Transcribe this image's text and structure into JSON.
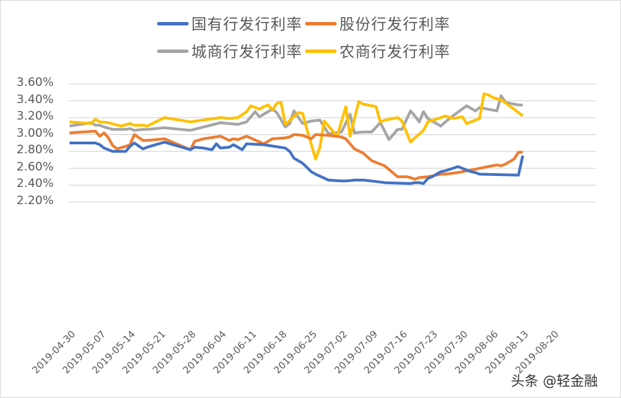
{
  "chart_data": {
    "type": "line",
    "title": "",
    "xlabel": "",
    "ylabel": "",
    "ylim": [
      2.2,
      3.6
    ],
    "y_ticks": [
      "3.60%",
      "3.40%",
      "3.20%",
      "3.00%",
      "2.80%",
      "2.60%",
      "2.40%",
      "2.20%"
    ],
    "x_ticks": [
      "2019-04-30",
      "2019-05-07",
      "2019-05-14",
      "2019-05-21",
      "2019-05-28",
      "2019-06-04",
      "2019-06-11",
      "2019-06-18",
      "2019-06-25",
      "2019-07-02",
      "2019-07-09",
      "2019-07-16",
      "2019-07-23",
      "2019-07-30",
      "2019-08-06",
      "2019-08-13",
      "2019-08-20"
    ],
    "grid": true,
    "legend_position": "top",
    "x_unit": "days since 2019-04-30",
    "series": [
      {
        "name": "国有行发行利率",
        "color": "#4472C4",
        "x": [
          0,
          6,
          7,
          8,
          10,
          12,
          13,
          14,
          15,
          17,
          18,
          22,
          28,
          29,
          31,
          33,
          34,
          35,
          37,
          38,
          39,
          40,
          41,
          45,
          50,
          51,
          52,
          54,
          55,
          56,
          57,
          60,
          63,
          64,
          66,
          68,
          70,
          73,
          79,
          80,
          81,
          82,
          83,
          84,
          86,
          87,
          90,
          92,
          93,
          94,
          95,
          104,
          105
        ],
        "values": [
          2.9,
          2.9,
          2.88,
          2.84,
          2.8,
          2.8,
          2.8,
          2.86,
          2.9,
          2.83,
          2.85,
          2.91,
          2.82,
          2.85,
          2.84,
          2.82,
          2.89,
          2.84,
          2.85,
          2.88,
          2.85,
          2.82,
          2.89,
          2.88,
          2.84,
          2.8,
          2.72,
          2.66,
          2.61,
          2.56,
          2.53,
          2.46,
          2.45,
          2.45,
          2.46,
          2.46,
          2.45,
          2.43,
          2.42,
          2.43,
          2.43,
          2.42,
          2.48,
          2.5,
          2.56,
          2.57,
          2.62,
          2.58,
          2.56,
          2.55,
          2.53,
          2.52,
          2.75
        ]
      },
      {
        "name": "股份行发行利率",
        "color": "#ED7D31",
        "x": [
          0,
          6,
          7,
          8,
          9,
          10,
          11,
          13,
          14,
          15,
          17,
          18,
          22,
          28,
          29,
          31,
          35,
          37,
          38,
          39,
          40,
          41,
          45,
          47,
          50,
          51,
          52,
          54,
          55,
          56,
          57,
          60,
          63,
          64,
          66,
          68,
          70,
          73,
          76,
          78,
          79,
          80,
          81,
          83,
          86,
          87,
          90,
          92,
          93,
          97,
          98,
          99,
          100,
          101,
          103,
          104,
          105
        ],
        "values": [
          3.02,
          3.04,
          2.98,
          3.02,
          2.96,
          2.87,
          2.83,
          2.86,
          2.88,
          3.0,
          2.93,
          2.93,
          2.95,
          2.82,
          2.92,
          2.95,
          2.98,
          2.93,
          2.95,
          2.94,
          2.96,
          2.98,
          2.89,
          2.95,
          2.96,
          2.97,
          3.0,
          2.99,
          2.97,
          2.95,
          3.0,
          2.99,
          2.97,
          2.95,
          2.83,
          2.78,
          2.69,
          2.63,
          2.5,
          2.5,
          2.49,
          2.47,
          2.49,
          2.5,
          2.53,
          2.53,
          2.55,
          2.57,
          2.58,
          2.62,
          2.63,
          2.64,
          2.63,
          2.65,
          2.71,
          2.79,
          2.79
        ]
      },
      {
        "name": "城商行发行利率",
        "color": "#A5A5A5",
        "x": [
          0,
          5,
          6,
          7,
          8,
          10,
          13,
          14,
          15,
          17,
          18,
          22,
          28,
          35,
          39,
          41,
          43,
          44,
          45,
          47,
          48,
          50,
          51,
          52,
          54,
          56,
          58,
          60,
          63,
          65,
          66,
          68,
          70,
          72,
          74,
          75,
          76,
          77,
          79,
          80,
          81,
          82,
          83,
          86,
          88,
          92,
          94,
          95,
          97,
          99,
          100,
          101,
          102,
          103,
          104,
          105
        ],
        "values": [
          3.1,
          3.14,
          3.11,
          3.11,
          3.09,
          3.06,
          3.06,
          3.07,
          3.05,
          3.06,
          3.06,
          3.08,
          3.05,
          3.14,
          3.12,
          3.15,
          3.27,
          3.21,
          3.24,
          3.3,
          3.26,
          3.09,
          3.13,
          3.28,
          3.13,
          3.16,
          3.17,
          3.01,
          3.03,
          3.24,
          3.02,
          3.03,
          3.03,
          3.14,
          2.94,
          3.0,
          3.06,
          3.06,
          3.28,
          3.22,
          3.15,
          3.27,
          3.19,
          3.1,
          3.19,
          3.34,
          3.28,
          3.32,
          3.3,
          3.28,
          3.46,
          3.38,
          3.37,
          3.36,
          3.35,
          3.35
        ]
      },
      {
        "name": "农商行发行利率",
        "color": "#FFC000",
        "x": [
          0,
          5,
          6,
          7,
          9,
          12,
          14,
          15,
          17,
          18,
          22,
          28,
          35,
          37,
          39,
          41,
          42,
          44,
          45,
          46,
          47,
          48,
          49,
          50,
          53,
          54,
          55,
          57,
          58,
          59,
          62,
          64,
          65,
          67,
          68,
          70,
          71,
          72,
          73,
          76,
          77,
          79,
          80,
          82,
          83,
          86,
          87,
          89,
          91,
          92,
          95,
          96,
          97,
          98,
          100,
          103,
          105
        ],
        "values": [
          3.15,
          3.13,
          3.18,
          3.15,
          3.14,
          3.1,
          3.13,
          3.11,
          3.11,
          3.1,
          3.2,
          3.15,
          3.2,
          3.19,
          3.2,
          3.27,
          3.34,
          3.3,
          3.33,
          3.35,
          3.29,
          3.37,
          3.38,
          3.12,
          3.26,
          3.25,
          3.06,
          2.71,
          2.85,
          3.16,
          2.98,
          3.33,
          2.98,
          3.39,
          3.36,
          3.34,
          3.33,
          3.15,
          3.17,
          3.2,
          3.16,
          2.91,
          2.96,
          3.05,
          3.15,
          3.2,
          3.22,
          3.19,
          3.21,
          3.13,
          3.19,
          3.48,
          3.47,
          3.44,
          3.41,
          3.3,
          3.22
        ]
      }
    ]
  },
  "legend": {
    "items": [
      {
        "label": "国有行发行利率",
        "color": "#4472C4"
      },
      {
        "label": "股份行发行利率",
        "color": "#ED7D31"
      },
      {
        "label": "城商行发行利率",
        "color": "#A5A5A5"
      },
      {
        "label": "农商行发行利率",
        "color": "#FFC000"
      }
    ]
  },
  "watermark": "头条 @轻金融"
}
